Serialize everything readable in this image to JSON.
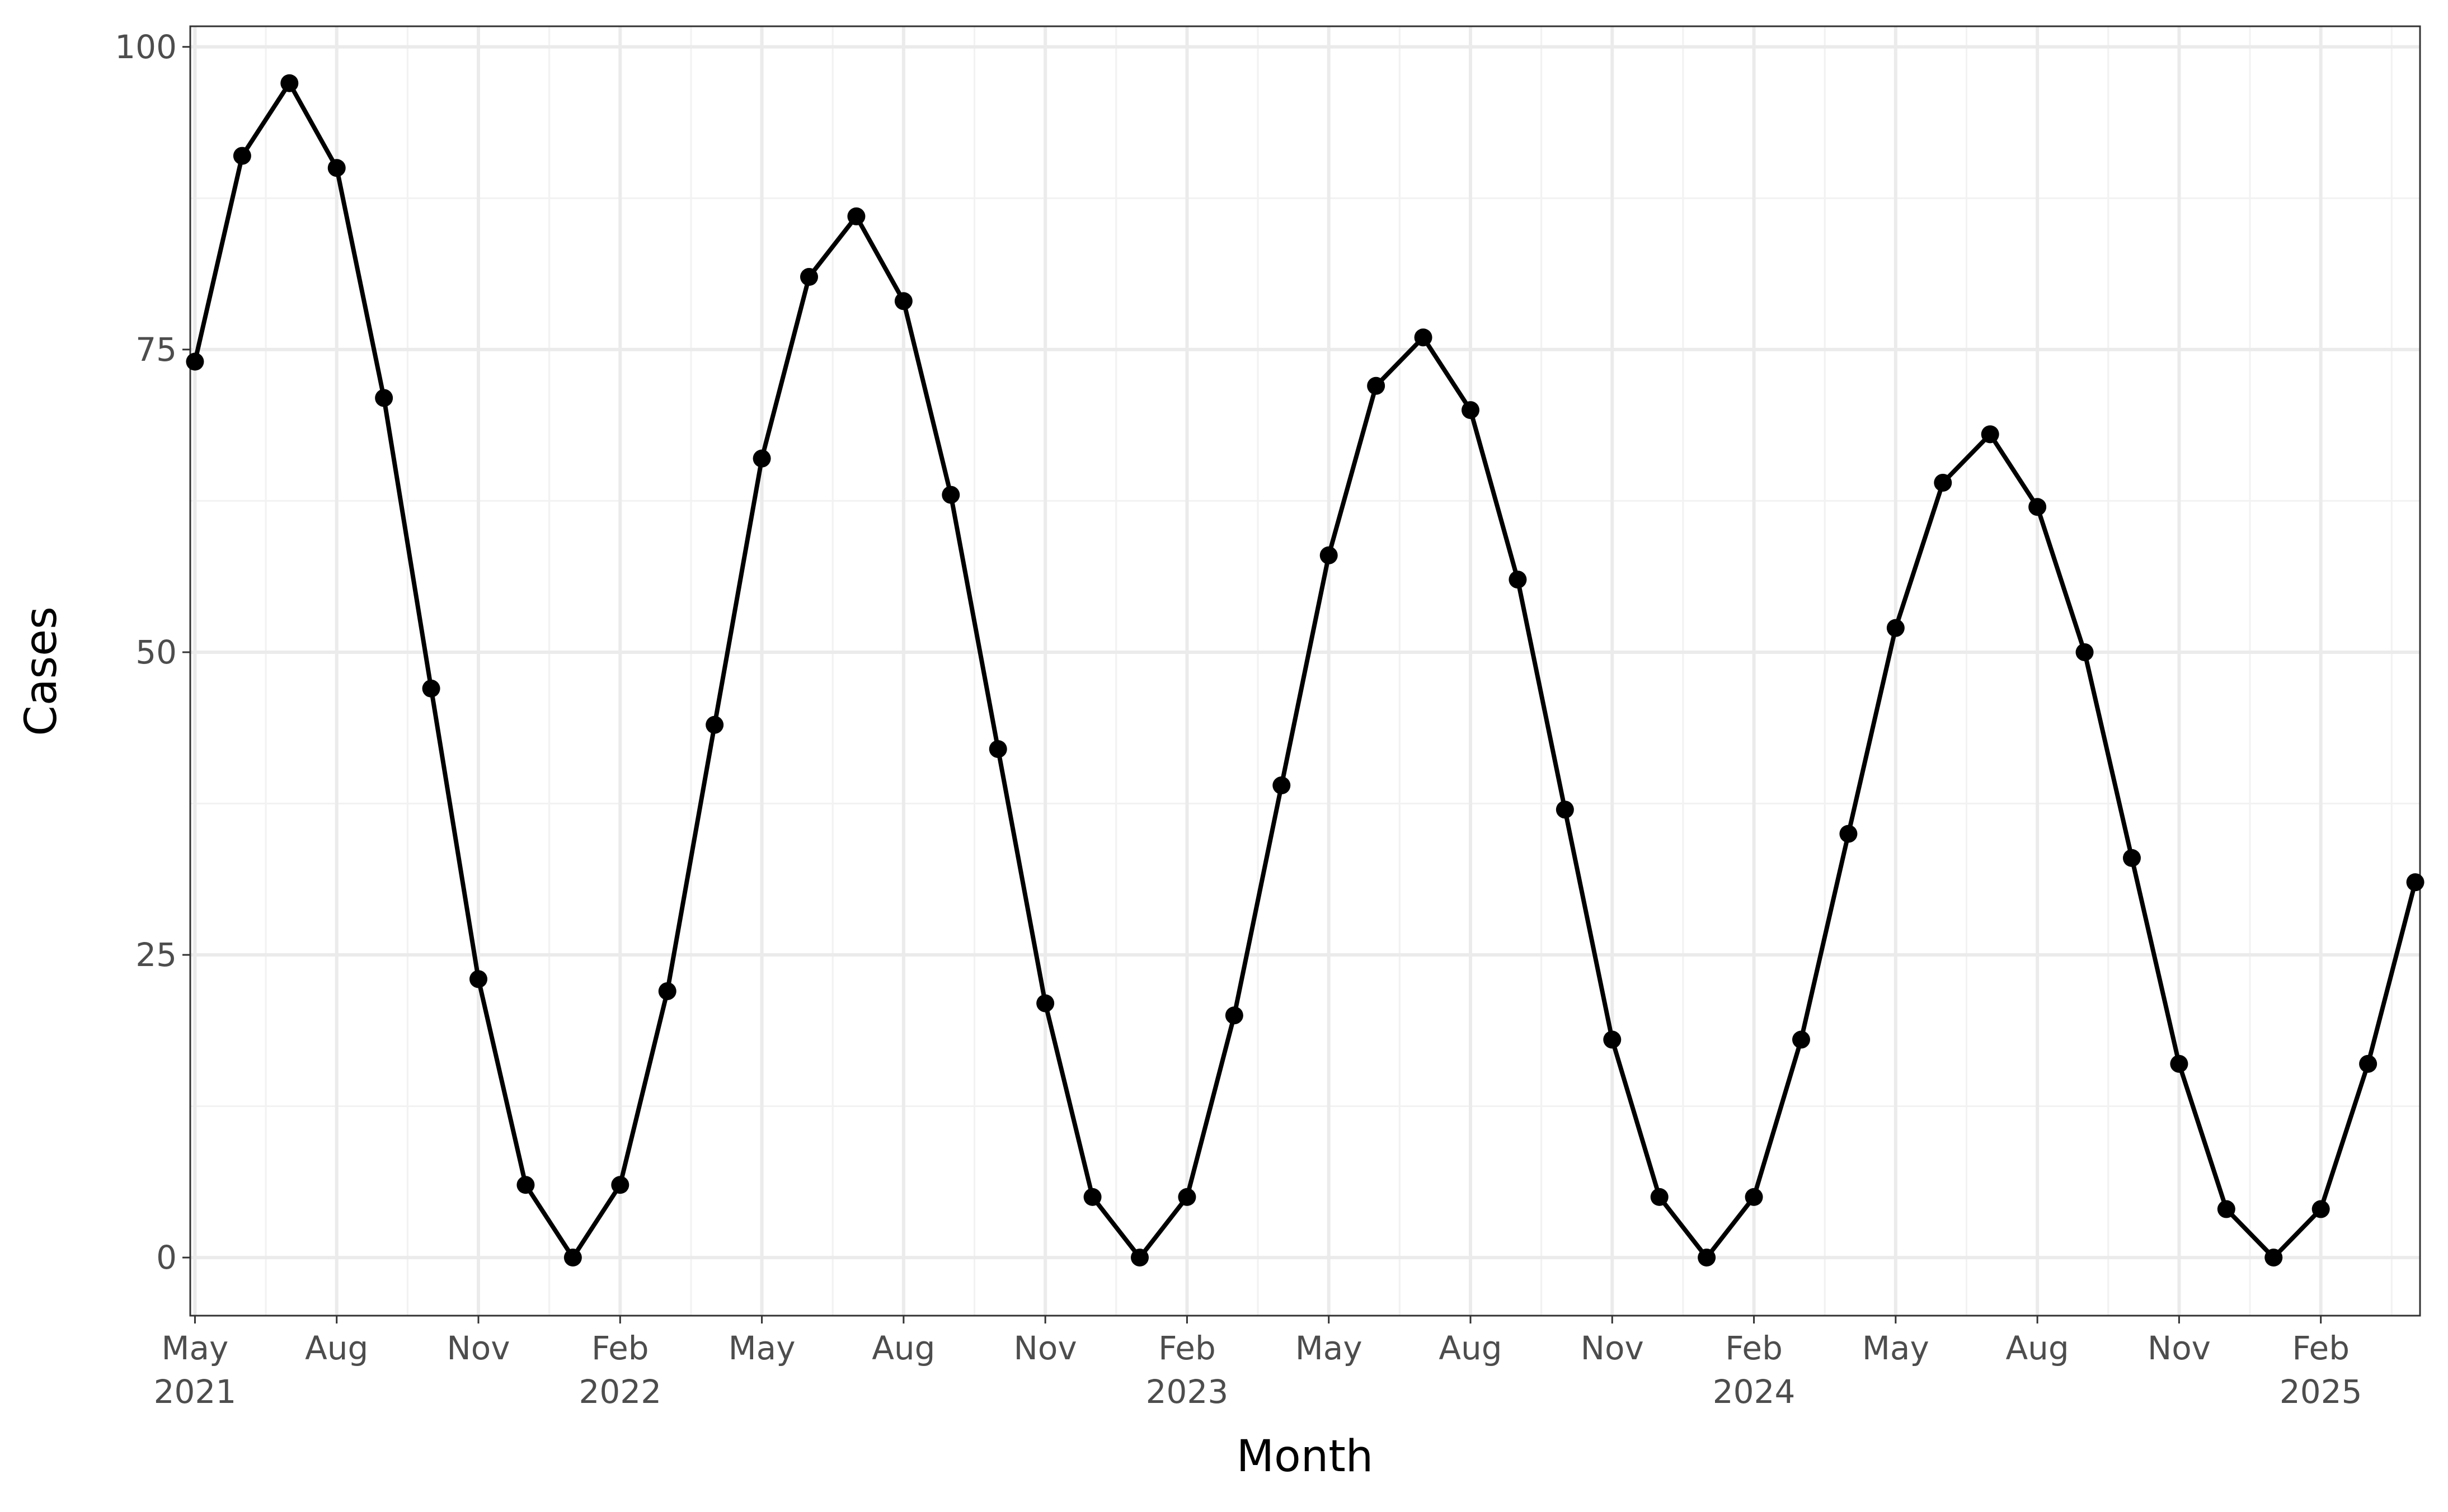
{
  "chart_data": {
    "type": "line",
    "x_label": "Month",
    "y_label": "Cases",
    "x": [
      "2021-05",
      "2021-06",
      "2021-07",
      "2021-08",
      "2021-09",
      "2021-10",
      "2021-11",
      "2021-12",
      "2022-01",
      "2022-02",
      "2022-03",
      "2022-04",
      "2022-05",
      "2022-06",
      "2022-07",
      "2022-08",
      "2022-09",
      "2022-10",
      "2022-11",
      "2022-12",
      "2023-01",
      "2023-02",
      "2023-03",
      "2023-04",
      "2023-05",
      "2023-06",
      "2023-07",
      "2023-08",
      "2023-09",
      "2023-10",
      "2023-11",
      "2023-12",
      "2024-01",
      "2024-02",
      "2024-03",
      "2024-04",
      "2024-05",
      "2024-06",
      "2024-07",
      "2024-08",
      "2024-09",
      "2024-10",
      "2024-11",
      "2024-12",
      "2025-01",
      "2025-02",
      "2025-03",
      "2025-04"
    ],
    "series": [
      {
        "name": "Cases",
        "color": "#000000",
        "values": [
          74,
          91,
          97,
          90,
          71,
          47,
          23,
          6,
          0,
          6,
          22,
          44,
          66,
          81,
          86,
          79,
          63,
          42,
          21,
          5,
          0,
          5,
          20,
          39,
          58,
          72,
          76,
          70,
          56,
          37,
          18,
          5,
          0,
          5,
          18,
          35,
          52,
          64,
          68,
          62,
          50,
          33,
          16,
          4,
          0,
          4,
          16,
          31
        ]
      }
    ],
    "xlim": [
      "2021-05",
      "2025-04"
    ],
    "xticks": [
      {
        "value": "2021-05",
        "label": [
          "May",
          "2021"
        ]
      },
      {
        "value": "2021-08",
        "label": [
          "Aug"
        ]
      },
      {
        "value": "2021-11",
        "label": [
          "Nov"
        ]
      },
      {
        "value": "2022-02",
        "label": [
          "Feb",
          "2022"
        ]
      },
      {
        "value": "2022-05",
        "label": [
          "May"
        ]
      },
      {
        "value": "2022-08",
        "label": [
          "Aug"
        ]
      },
      {
        "value": "2022-11",
        "label": [
          "Nov"
        ]
      },
      {
        "value": "2023-02",
        "label": [
          "Feb",
          "2023"
        ]
      },
      {
        "value": "2023-05",
        "label": [
          "May"
        ]
      },
      {
        "value": "2023-08",
        "label": [
          "Aug"
        ]
      },
      {
        "value": "2023-11",
        "label": [
          "Nov"
        ]
      },
      {
        "value": "2024-02",
        "label": [
          "Feb",
          "2024"
        ]
      },
      {
        "value": "2024-05",
        "label": [
          "May"
        ]
      },
      {
        "value": "2024-08",
        "label": [
          "Aug"
        ]
      },
      {
        "value": "2024-11",
        "label": [
          "Nov"
        ]
      },
      {
        "value": "2025-02",
        "label": [
          "Feb",
          "2025"
        ]
      }
    ],
    "ylim": [
      -4.8,
      101.7
    ],
    "yticks": [
      0,
      25,
      50,
      75,
      100
    ],
    "grid": true
  }
}
